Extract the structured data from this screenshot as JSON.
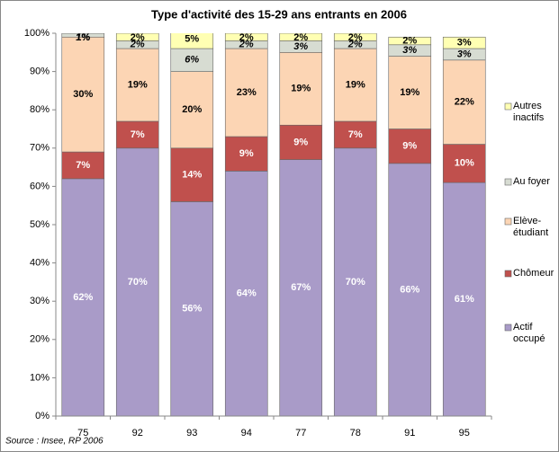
{
  "chart_data": {
    "type": "stacked_bar",
    "title": "Type d'activité des 15-29 ans entrants en 2006",
    "categories": [
      "75",
      "92",
      "93",
      "94",
      "77",
      "78",
      "91",
      "95"
    ],
    "series": [
      {
        "name": "Actif occupé",
        "color": "#a99bc8",
        "values": [
          62,
          70,
          56,
          64,
          67,
          70,
          66,
          61
        ],
        "value_labels": [
          "62%",
          "70%",
          "56%",
          "64%",
          "67%",
          "70%",
          "66%",
          "61%"
        ]
      },
      {
        "name": "Chômeur",
        "color": "#c0504d",
        "values": [
          7,
          7,
          14,
          9,
          9,
          7,
          9,
          10
        ],
        "value_labels": [
          "7%",
          "7%",
          "14%",
          "9%",
          "9%",
          "7%",
          "9%",
          "10%"
        ]
      },
      {
        "name": "Elève-étudiant",
        "color": "#fcd5b4",
        "values": [
          30,
          19,
          20,
          23,
          19,
          19,
          19,
          22
        ],
        "value_labels": [
          "30%",
          "19%",
          "20%",
          "23%",
          "19%",
          "19%",
          "19%",
          "22%"
        ]
      },
      {
        "name": "Au foyer",
        "color": "#d7dcd2",
        "values": [
          1,
          2,
          6,
          2,
          3,
          2,
          3,
          3
        ],
        "value_labels": [
          "1%",
          "2%",
          "6%",
          "2%",
          "3%",
          "2%",
          "3%",
          "3%"
        ]
      },
      {
        "name": "Autres inactifs",
        "color": "#ffffb3",
        "values": [
          1,
          2,
          5,
          2,
          2,
          2,
          2,
          3
        ],
        "value_labels": [
          "1%",
          "2%",
          "5%",
          "2%",
          "2%",
          "2%",
          "2%",
          "3%"
        ]
      }
    ],
    "ylim": [
      0,
      100
    ],
    "yticks": [
      {
        "value": 0,
        "label": "0%"
      },
      {
        "value": 10,
        "label": "10%"
      },
      {
        "value": 20,
        "label": "20%"
      },
      {
        "value": 30,
        "label": "30%"
      },
      {
        "value": 40,
        "label": "40%"
      },
      {
        "value": 50,
        "label": "50%"
      },
      {
        "value": 60,
        "label": "60%"
      },
      {
        "value": 70,
        "label": "70%"
      },
      {
        "value": 80,
        "label": "80%"
      },
      {
        "value": 90,
        "label": "90%"
      },
      {
        "value": 100,
        "label": "100%"
      }
    ],
    "legend": "right",
    "source": "Source : Insee, RP 2006"
  }
}
